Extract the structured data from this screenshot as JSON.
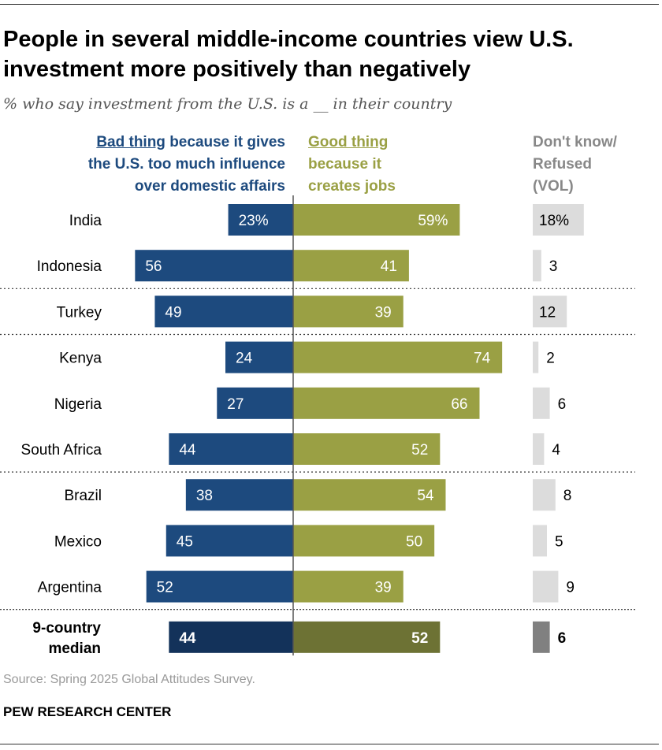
{
  "title": "People in several middle-income countries view U.S. investment more positively than negatively",
  "subtitle": "% who say investment from the U.S. is a __ in their country",
  "headers": {
    "bad_prefix": "Bad thing",
    "bad_rest": " because it gives\nthe U.S. too much influence\nover domestic affairs",
    "good_prefix": "Good thing",
    "good_rest": "\nbecause it\ncreates jobs",
    "dk": "Don't know/\nRefused\n(VOL)"
  },
  "source": "Source: Spring 2025 Global Attitudes Survey.",
  "org": "PEW RESEARCH CENTER",
  "colors": {
    "bad": "#1d4a7e",
    "good": "#9aa044",
    "dk": "#dcdcdc",
    "bad_median": "#13325a",
    "good_median": "#6d7234",
    "dk_median": "#808080"
  },
  "chart_data": {
    "type": "bar",
    "orientation": "horizontal-diverging",
    "title": "People in several middle-income countries view U.S. investment more positively than negatively",
    "categories": [
      "India",
      "Indonesia",
      "Turkey",
      "Kenya",
      "Nigeria",
      "South Africa",
      "Brazil",
      "Mexico",
      "Argentina",
      "9-country median"
    ],
    "value_labels": {
      "bad": [
        "23%",
        "56",
        "49",
        "24",
        "27",
        "44",
        "38",
        "45",
        "52",
        "44"
      ],
      "good": [
        "59%",
        "41",
        "39",
        "74",
        "66",
        "52",
        "54",
        "50",
        "39",
        "52"
      ],
      "dk": [
        "18%",
        "3",
        "12",
        "2",
        "6",
        "4",
        "8",
        "5",
        "9",
        "6"
      ]
    },
    "series": [
      {
        "name": "Bad thing because it gives the U.S. too much influence over domestic affairs",
        "key": "bad",
        "values": [
          23,
          56,
          49,
          24,
          27,
          44,
          38,
          45,
          52,
          44
        ]
      },
      {
        "name": "Good thing because it creates jobs",
        "key": "good",
        "values": [
          59,
          41,
          39,
          74,
          66,
          52,
          54,
          50,
          39,
          52
        ]
      },
      {
        "name": "Don't know/Refused (VOL)",
        "key": "dk",
        "values": [
          18,
          3,
          12,
          2,
          6,
          4,
          8,
          5,
          9,
          6
        ]
      }
    ],
    "group_separators_after": [
      "Indonesia",
      "Turkey",
      "South Africa",
      "Argentina"
    ],
    "xlim": [
      0,
      100
    ]
  }
}
